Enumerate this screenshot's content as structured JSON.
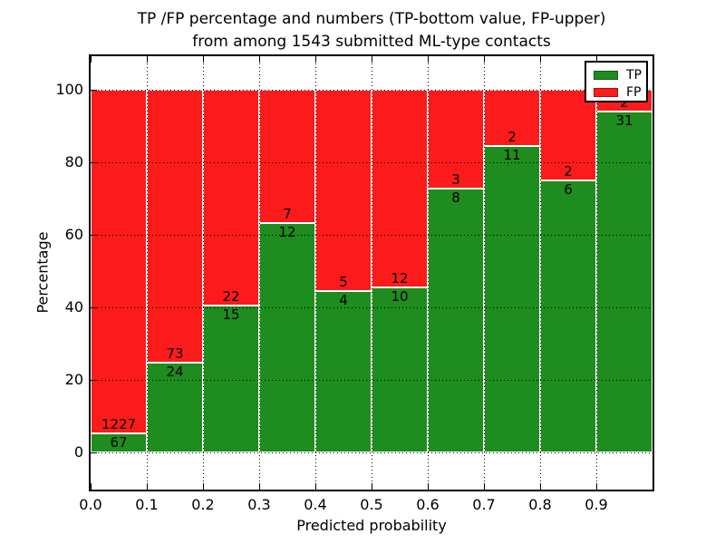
{
  "figure": {
    "title_line1": "TP /FP percentage and numbers (TP-bottom value, FP-upper)",
    "title_line2": "from among 1543 submitted ML-type contacts",
    "xlabel": "Predicted probability",
    "ylabel": "Percentage"
  },
  "legend": {
    "position": "upper right",
    "items": [
      {
        "label": "TP",
        "color": "#1e8c1e"
      },
      {
        "label": "FP",
        "color": "#fb1b1b"
      }
    ]
  },
  "chart_data": {
    "type": "bar",
    "stacked": true,
    "normalized": "each bin scaled to 100%",
    "title": "TP /FP percentage and numbers (TP-bottom value, FP-upper) from among 1543 submitted ML-type contacts",
    "xlabel": "Predicted probability",
    "ylabel": "Percentage",
    "categories": [
      "0.0-0.1",
      "0.1-0.2",
      "0.2-0.3",
      "0.3-0.4",
      "0.4-0.5",
      "0.5-0.6",
      "0.6-0.7",
      "0.7-0.8",
      "0.8-0.9",
      "0.9-1.0"
    ],
    "x_tick_labels": [
      "0.0",
      "0.1",
      "0.2",
      "0.3",
      "0.4",
      "0.5",
      "0.6",
      "0.7",
      "0.8",
      "0.9"
    ],
    "y_ticks": [
      0,
      20,
      40,
      60,
      80,
      100
    ],
    "xlim": [
      0.0,
      1.0
    ],
    "ylim": [
      -10,
      110
    ],
    "grid": true,
    "grid_style": "dotted",
    "legend_position": "upper right",
    "total_contacts": 1543,
    "series": [
      {
        "name": "TP",
        "color": "#1e8c1e",
        "values": [
          67,
          24,
          15,
          12,
          4,
          10,
          8,
          11,
          6,
          31
        ]
      },
      {
        "name": "FP",
        "color": "#fb1b1b",
        "values": [
          1227,
          73,
          22,
          7,
          5,
          12,
          3,
          2,
          2,
          2
        ]
      }
    ],
    "tp_percent": [
      5.18,
      24.74,
      40.54,
      63.16,
      44.44,
      45.45,
      72.73,
      84.62,
      75.0,
      93.94
    ]
  }
}
